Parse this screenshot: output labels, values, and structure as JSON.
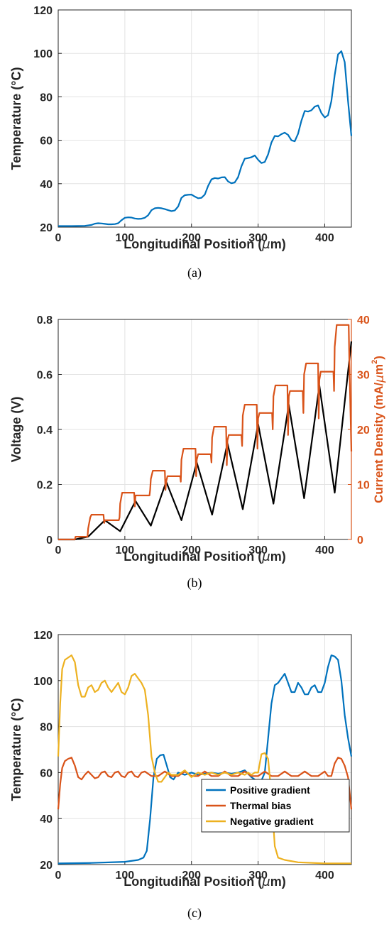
{
  "chart_data": [
    {
      "type": "line",
      "caption": "(a)",
      "xlabel": "Longitudinal Position (",
      "xlabel_unit": "m)",
      "ylabel": "Temperature (°C)",
      "xlim": [
        0,
        440
      ],
      "ylim": [
        20,
        120
      ],
      "xticks": [
        "0",
        "100",
        "200",
        "300",
        "400"
      ],
      "yticks": [
        "20",
        "40",
        "60",
        "80",
        "100",
        "120"
      ],
      "grid": true,
      "series": [
        {
          "color": "#0072BD",
          "x": [
            0,
            20,
            40,
            50,
            55,
            60,
            65,
            70,
            75,
            80,
            85,
            90,
            95,
            100,
            105,
            110,
            115,
            120,
            125,
            130,
            135,
            140,
            145,
            150,
            155,
            160,
            165,
            170,
            175,
            180,
            185,
            190,
            195,
            200,
            205,
            210,
            215,
            220,
            225,
            230,
            235,
            240,
            245,
            250,
            255,
            260,
            265,
            270,
            275,
            280,
            285,
            290,
            295,
            300,
            305,
            310,
            315,
            320,
            325,
            330,
            335,
            340,
            345,
            350,
            355,
            360,
            365,
            370,
            375,
            380,
            385,
            390,
            395,
            400,
            405,
            410,
            415,
            420,
            425,
            430,
            435,
            440
          ],
          "y": [
            20.5,
            20.5,
            20.6,
            21,
            21.6,
            21.8,
            21.7,
            21.5,
            21.3,
            21.3,
            21.4,
            21.8,
            23.2,
            24.3,
            24.5,
            24.4,
            24.0,
            23.8,
            23.9,
            24.3,
            25.5,
            27.8,
            28.7,
            28.9,
            28.7,
            28.3,
            27.8,
            27.4,
            27.7,
            29.5,
            33.5,
            34.7,
            34.9,
            35.0,
            34.1,
            33.3,
            33.5,
            35.0,
            39.0,
            42.0,
            42.6,
            42.4,
            42.9,
            43.0,
            41.0,
            40.2,
            40.6,
            43.0,
            48.0,
            51.5,
            51.8,
            52.2,
            53.0,
            51.0,
            49.5,
            50.0,
            53.5,
            59.0,
            62.0,
            61.8,
            62.8,
            63.5,
            62.5,
            60.0,
            59.5,
            63.0,
            69.0,
            73.5,
            73.2,
            73.8,
            75.5,
            76.0,
            72.5,
            70.5,
            71.5,
            78.0,
            90.0,
            99.5,
            101.0,
            96.0,
            78.0,
            62.0
          ]
        }
      ]
    },
    {
      "type": "line",
      "caption": "(b)",
      "xlabel": "Longitudinal Position (",
      "xlabel_unit": "m)",
      "ylabel": "Voltage (V)",
      "ylabel_right": "Current Density (mA/",
      "ylabel_right_unit": "m",
      "ylabel_right_exp": "2",
      "ylabel_right_close": ")",
      "xlim": [
        0,
        440
      ],
      "ylim": [
        0,
        0.8
      ],
      "ylim_right": [
        0,
        40
      ],
      "xticks": [
        "0",
        "100",
        "200",
        "300",
        "400"
      ],
      "yticks": [
        "0",
        "0.2",
        "0.4",
        "0.6",
        "0.8"
      ],
      "yticks_right": [
        "0",
        "10",
        "20",
        "30",
        "40"
      ],
      "grid": true,
      "series": [
        {
          "axis": "left",
          "color": "#000000",
          "x": [
            0,
            25,
            45,
            70,
            93,
            116,
            139,
            162,
            185,
            208,
            231,
            254,
            277,
            300,
            323,
            346,
            369,
            392,
            415,
            440
          ],
          "y": [
            0,
            0,
            0.01,
            0.07,
            0.03,
            0.14,
            0.05,
            0.21,
            0.07,
            0.28,
            0.09,
            0.35,
            0.11,
            0.42,
            0.13,
            0.49,
            0.15,
            0.56,
            0.17,
            0.72
          ]
        },
        {
          "axis": "right",
          "color": "#D95319",
          "x": [
            0,
            25,
            26,
            44,
            45,
            48,
            50,
            68,
            69,
            70,
            72,
            91,
            92,
            93,
            96,
            114,
            115,
            116,
            118,
            137,
            138,
            139,
            142,
            160,
            161,
            162,
            164,
            183,
            184,
            185,
            188,
            206,
            207,
            208,
            210,
            229,
            230,
            231,
            234,
            252,
            253,
            254,
            256,
            275,
            276,
            277,
            280,
            298,
            299,
            300,
            302,
            321,
            322,
            323,
            326,
            344,
            345,
            346,
            348,
            367,
            368,
            369,
            372,
            390,
            391,
            392,
            394,
            413,
            414,
            415,
            418,
            436,
            437,
            440
          ],
          "y": [
            0,
            0,
            0.5,
            0.5,
            2,
            4,
            4.5,
            4.5,
            3,
            3.5,
            3.5,
            3.5,
            4,
            6.5,
            8.5,
            8.5,
            6,
            8,
            8,
            8,
            9,
            11,
            12.5,
            12.5,
            9,
            10.5,
            11.5,
            11.5,
            10.5,
            14.5,
            16.5,
            16.5,
            11.5,
            14.5,
            15.5,
            15.5,
            14,
            18.5,
            20.5,
            20.5,
            13.5,
            18,
            19,
            19,
            17,
            22.5,
            24.5,
            24.5,
            16.5,
            22,
            23,
            23,
            20,
            26,
            28,
            28,
            19,
            26,
            27,
            27,
            23,
            30,
            32,
            32,
            22,
            29,
            30.5,
            30.5,
            27,
            35,
            39,
            39,
            32,
            16
          ]
        }
      ]
    },
    {
      "type": "line",
      "caption": "(c)",
      "xlabel": "Longitudinal Position (",
      "xlabel_unit": "m)",
      "ylabel": "Temperature (°C)",
      "xlim": [
        0,
        440
      ],
      "ylim": [
        20,
        120
      ],
      "xticks": [
        "0",
        "100",
        "200",
        "300",
        "400"
      ],
      "yticks": [
        "20",
        "40",
        "60",
        "80",
        "100",
        "120"
      ],
      "grid": true,
      "legend_position": "bottom-right",
      "series": [
        {
          "name": "Positive gradient",
          "color": "#0072BD",
          "x": [
            0,
            50,
            100,
            120,
            128,
            133,
            138,
            143,
            148,
            153,
            158,
            163,
            168,
            173,
            180,
            190,
            200,
            210,
            220,
            230,
            240,
            250,
            260,
            270,
            280,
            290,
            300,
            305,
            310,
            315,
            320,
            325,
            330,
            335,
            340,
            345,
            350,
            355,
            360,
            365,
            370,
            375,
            380,
            385,
            390,
            395,
            400,
            405,
            410,
            415,
            420,
            425,
            430,
            435,
            440
          ],
          "y": [
            20.5,
            20.7,
            21.2,
            22,
            23,
            26,
            40,
            58,
            66,
            67.5,
            67.8,
            63,
            58,
            57,
            60,
            59,
            60,
            59,
            59.5,
            60,
            59.5,
            60,
            59.5,
            60,
            61,
            58,
            56,
            56.5,
            60,
            75,
            90,
            98,
            99,
            101,
            103,
            99,
            95,
            95,
            99,
            97,
            94,
            94,
            97,
            98,
            95,
            95,
            99,
            106,
            111,
            110.5,
            109,
            100,
            85,
            75,
            67
          ]
        },
        {
          "name": "Thermal bias",
          "color": "#D95319",
          "x": [
            0,
            3,
            6,
            10,
            15,
            20,
            25,
            30,
            35,
            40,
            45,
            50,
            55,
            60,
            65,
            70,
            75,
            80,
            85,
            90,
            95,
            100,
            105,
            110,
            115,
            120,
            125,
            130,
            140,
            150,
            160,
            170,
            180,
            190,
            200,
            210,
            220,
            230,
            240,
            250,
            260,
            270,
            280,
            290,
            300,
            310,
            320,
            330,
            340,
            350,
            360,
            370,
            380,
            390,
            400,
            405,
            410,
            415,
            420,
            425,
            430,
            435,
            440
          ],
          "y": [
            44,
            55,
            62,
            65,
            66,
            66.5,
            63,
            58,
            57,
            59,
            60.5,
            59,
            57.5,
            58,
            60,
            60.5,
            58.5,
            58,
            60,
            60.5,
            58.5,
            58,
            60,
            60.5,
            58.5,
            58,
            60,
            60.5,
            58.5,
            58.5,
            60.5,
            58.5,
            58.5,
            60.5,
            58.5,
            58.5,
            60.5,
            58.5,
            58.5,
            60.5,
            58.5,
            58.5,
            60.5,
            58.5,
            58.5,
            60.5,
            58.5,
            58.5,
            60.5,
            58.5,
            58.5,
            60.5,
            58.5,
            58.5,
            60.5,
            58.5,
            58.5,
            64,
            66.5,
            66,
            63,
            58,
            44
          ]
        },
        {
          "name": "Negative gradient",
          "color": "#EDB120",
          "x": [
            0,
            3,
            6,
            10,
            15,
            20,
            25,
            30,
            35,
            40,
            45,
            50,
            55,
            60,
            65,
            70,
            75,
            80,
            85,
            90,
            95,
            100,
            105,
            110,
            115,
            120,
            125,
            130,
            135,
            140,
            145,
            150,
            155,
            160,
            165,
            170,
            180,
            190,
            200,
            210,
            220,
            230,
            240,
            250,
            260,
            270,
            280,
            285,
            290,
            295,
            300,
            305,
            310,
            315,
            320,
            325,
            330,
            340,
            360,
            400,
            440
          ],
          "y": [
            67,
            90,
            105,
            109,
            110,
            111,
            108,
            98,
            93,
            93,
            97,
            98,
            95,
            96,
            99,
            100,
            97,
            95,
            97,
            99,
            95,
            94,
            97,
            102,
            103,
            101,
            99,
            96,
            85,
            67,
            60,
            56,
            56,
            58,
            60,
            59,
            59,
            61,
            58,
            60,
            59,
            60,
            59,
            60,
            59,
            60,
            59,
            60,
            59,
            60,
            60,
            68,
            68.5,
            66,
            50,
            28,
            23,
            22,
            21,
            20.5,
            20.5
          ]
        }
      ]
    }
  ]
}
